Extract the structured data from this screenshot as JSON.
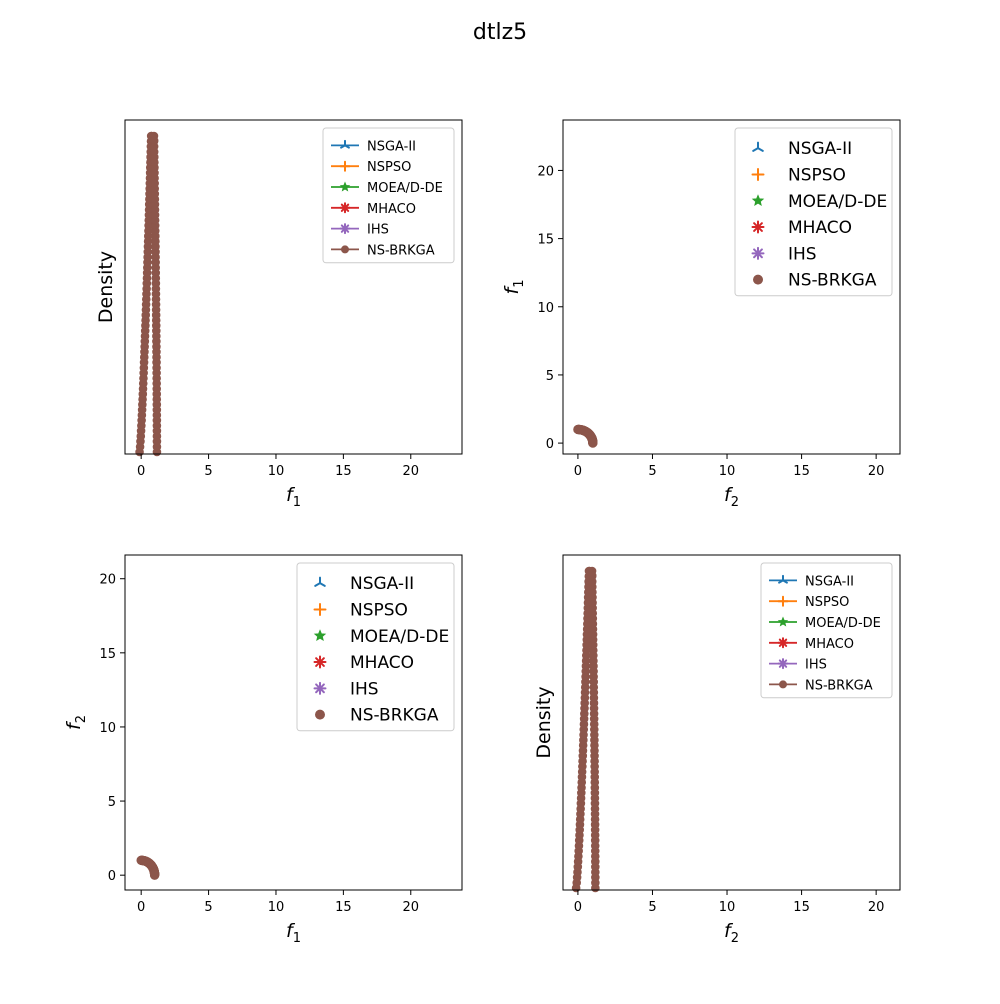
{
  "figure": {
    "title": "dtlz5"
  },
  "chart_data": [
    {
      "type": "line",
      "subplot": "top-left",
      "xlabel": "f",
      "xlabel_sub": "1",
      "ylabel": "Density",
      "ylabel_sub": "",
      "xlim": [
        -1.2,
        23.8
      ],
      "xticks": [
        0,
        5,
        10,
        15,
        20
      ],
      "yticks": [],
      "legend": {
        "position": "upper-right",
        "font": "small",
        "symbols": "line-marker"
      },
      "note": "Density of f1 for each algorithm; series overlap, NS-BRKGA drawn on top.",
      "series": [
        {
          "name": "NSGA-II",
          "marker": "tri-up",
          "color": "#1f77b4"
        },
        {
          "name": "NSPSO",
          "marker": "plus",
          "color": "#ff7f0e"
        },
        {
          "name": "MOEA/D-DE",
          "marker": "star",
          "color": "#2ca02c"
        },
        {
          "name": "MHACO",
          "marker": "asterisk",
          "color": "#d62728"
        },
        {
          "name": "IHS",
          "marker": "asterisk",
          "color": "#9467bd"
        },
        {
          "name": "NS-BRKGA",
          "marker": "circle",
          "color": "#8c564b"
        }
      ]
    },
    {
      "type": "scatter",
      "subplot": "top-right",
      "xlabel": "f",
      "xlabel_sub": "2",
      "ylabel": "f",
      "ylabel_sub": "1",
      "xlim": [
        -1.0,
        21.6
      ],
      "ylim": [
        -0.8,
        23.7
      ],
      "xticks": [
        0,
        5,
        10,
        15,
        20
      ],
      "yticks": [
        0,
        5,
        10,
        15,
        20
      ],
      "legend": {
        "position": "upper-right",
        "font": "large",
        "symbols": "marker"
      },
      "note": "Pareto front points on the quarter arc f1^2 + f2^2 = 1; all series overlap.",
      "series": [
        {
          "name": "NSGA-II",
          "marker": "tri-up",
          "color": "#1f77b4"
        },
        {
          "name": "NSPSO",
          "marker": "plus",
          "color": "#ff7f0e"
        },
        {
          "name": "MOEA/D-DE",
          "marker": "star",
          "color": "#2ca02c"
        },
        {
          "name": "MHACO",
          "marker": "asterisk",
          "color": "#d62728"
        },
        {
          "name": "IHS",
          "marker": "asterisk",
          "color": "#9467bd"
        },
        {
          "name": "NS-BRKGA",
          "marker": "circle",
          "color": "#8c564b"
        }
      ]
    },
    {
      "type": "scatter",
      "subplot": "bottom-left",
      "xlabel": "f",
      "xlabel_sub": "1",
      "ylabel": "f",
      "ylabel_sub": "2",
      "xlim": [
        -1.2,
        23.8
      ],
      "ylim": [
        -1.0,
        21.6
      ],
      "xticks": [
        0,
        5,
        10,
        15,
        20
      ],
      "yticks": [
        0,
        5,
        10,
        15,
        20
      ],
      "legend": {
        "position": "upper-right",
        "font": "large",
        "symbols": "marker"
      },
      "note": "Pareto front points on the quarter arc f1^2 + f2^2 = 1; all series overlap.",
      "series": [
        {
          "name": "NSGA-II",
          "marker": "tri-up",
          "color": "#1f77b4"
        },
        {
          "name": "NSPSO",
          "marker": "plus",
          "color": "#ff7f0e"
        },
        {
          "name": "MOEA/D-DE",
          "marker": "star",
          "color": "#2ca02c"
        },
        {
          "name": "MHACO",
          "marker": "asterisk",
          "color": "#d62728"
        },
        {
          "name": "IHS",
          "marker": "asterisk",
          "color": "#9467bd"
        },
        {
          "name": "NS-BRKGA",
          "marker": "circle",
          "color": "#8c564b"
        }
      ]
    },
    {
      "type": "line",
      "subplot": "bottom-right",
      "xlabel": "f",
      "xlabel_sub": "2",
      "ylabel": "Density",
      "ylabel_sub": "",
      "xlim": [
        -1.0,
        21.6
      ],
      "xticks": [
        0,
        5,
        10,
        15,
        20
      ],
      "yticks": [],
      "legend": {
        "position": "upper-right",
        "font": "small",
        "symbols": "line-marker"
      },
      "note": "Density of f2 for each algorithm; series overlap, NS-BRKGA drawn on top.",
      "series": [
        {
          "name": "NSGA-II",
          "marker": "tri-up",
          "color": "#1f77b4"
        },
        {
          "name": "NSPSO",
          "marker": "plus",
          "color": "#ff7f0e"
        },
        {
          "name": "MOEA/D-DE",
          "marker": "star",
          "color": "#2ca02c"
        },
        {
          "name": "MHACO",
          "marker": "asterisk",
          "color": "#d62728"
        },
        {
          "name": "IHS",
          "marker": "asterisk",
          "color": "#9467bd"
        },
        {
          "name": "NS-BRKGA",
          "marker": "circle",
          "color": "#8c564b"
        }
      ]
    }
  ]
}
